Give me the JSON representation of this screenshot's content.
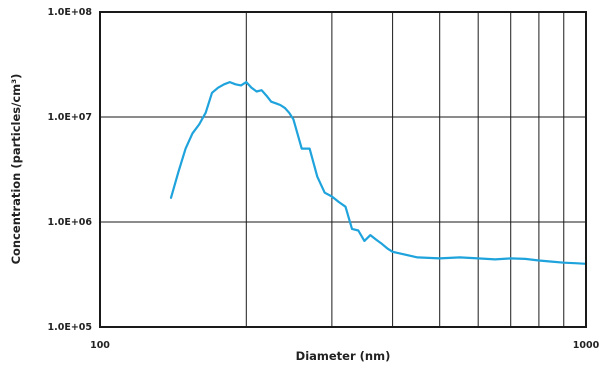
{
  "chart_data": {
    "type": "line",
    "title": "",
    "xlabel": "Diameter (nm)",
    "ylabel": "Concentration (particles/cm³)",
    "x_scale": "log",
    "y_scale": "log",
    "xlim": [
      100,
      1000
    ],
    "ylim": [
      100000,
      100000000
    ],
    "grid": true,
    "x_tick_labels": [
      "100",
      "1000"
    ],
    "x_tick_values": [
      100,
      1000
    ],
    "y_tick_labels": [
      "1.0E+05",
      "1.0E+06",
      "1.0E+07",
      "1.0E+08"
    ],
    "y_tick_values": [
      100000,
      1000000,
      10000000,
      100000000
    ],
    "series": [
      {
        "color": "#1fa3dc",
        "x": [
          140,
          145,
          150,
          155,
          160,
          165,
          170,
          175,
          180,
          185,
          190,
          195,
          200,
          205,
          210,
          215,
          220,
          225,
          230,
          235,
          240,
          245,
          250,
          260,
          270,
          280,
          290,
          300,
          310,
          320,
          330,
          340,
          350,
          360,
          370,
          380,
          390,
          400,
          450,
          500,
          550,
          600,
          650,
          700,
          750,
          800,
          850,
          900,
          950,
          1000
        ],
        "y": [
          1700000,
          3000000,
          5000000,
          7000000,
          8500000,
          11000000,
          17000000,
          19000000,
          20500000,
          21500000,
          20500000,
          20000000,
          21500000,
          19000000,
          17500000,
          18000000,
          16000000,
          14000000,
          13500000,
          13000000,
          12200000,
          11000000,
          9500000,
          5000000,
          5000000,
          2700000,
          1900000,
          1750000,
          1550000,
          1400000,
          860000,
          830000,
          660000,
          750000,
          680000,
          620000,
          560000,
          520000,
          460000,
          450000,
          460000,
          450000,
          440000,
          450000,
          445000,
          430000,
          420000,
          410000,
          405000,
          400000
        ]
      }
    ]
  }
}
